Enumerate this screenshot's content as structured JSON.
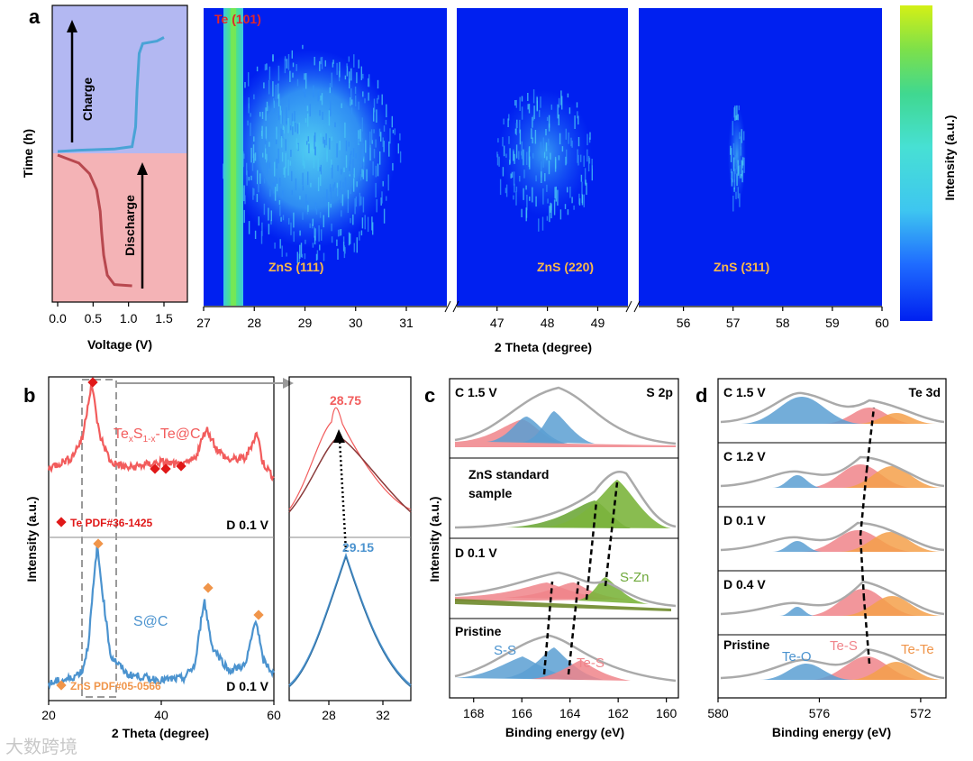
{
  "panels": {
    "a": "a",
    "b": "b",
    "c": "c",
    "d": "d"
  },
  "watermark": "大数跨境",
  "chart_data": [
    {
      "id": "a-voltage",
      "type": "line",
      "xlabel": "Voltage (V)",
      "ylabel": "Time (h)",
      "xticks": [
        "0.0",
        "0.5",
        "1.0",
        "1.5"
      ],
      "labels": {
        "charge": "Charge",
        "discharge": "Discharge"
      },
      "colors": {
        "charge_bg": "#b3b8f2",
        "discharge_bg": "#f4b3b6",
        "charge_line": "#4aa3d6",
        "discharge_line": "#b8484f"
      },
      "series": [
        {
          "name": "Discharge",
          "x": [
            0.0,
            0.3,
            0.45,
            0.55,
            0.6,
            0.62,
            0.65,
            0.7,
            0.8,
            1.05
          ],
          "y": [
            0.0,
            0.06,
            0.14,
            0.26,
            0.42,
            0.58,
            0.75,
            0.9,
            0.97,
            0.98
          ]
        },
        {
          "name": "Charge",
          "x": [
            0.0,
            0.3,
            0.8,
            1.05,
            1.1,
            1.12,
            1.15,
            1.2,
            1.4,
            1.5
          ],
          "y": [
            0.0,
            0.01,
            0.02,
            0.04,
            0.2,
            0.5,
            0.8,
            0.88,
            0.9,
            0.93
          ]
        }
      ]
    },
    {
      "id": "a-contour",
      "type": "heatmap",
      "xlabel": "2 Theta (degree)",
      "colorbar_label": "Intensity (a.u.)",
      "segments": [
        {
          "range": [
            27,
            31.8
          ],
          "ticks": [
            "27",
            "28",
            "29",
            "30",
            "31"
          ]
        },
        {
          "range": [
            46.2,
            49.6
          ],
          "ticks": [
            "47",
            "48",
            "49"
          ]
        },
        {
          "range": [
            55.1,
            60
          ],
          "ticks": [
            "56",
            "57",
            "58",
            "59",
            "60"
          ]
        }
      ],
      "annotations": [
        {
          "text": "Te (101)"
        },
        {
          "text": "ZnS (111)"
        },
        {
          "text": "ZnS (220)"
        },
        {
          "text": "ZnS (311)"
        }
      ],
      "colors": [
        "#0020f0",
        "#1f6cff",
        "#3ec6f0",
        "#47e0d4",
        "#40d890",
        "#7de04a",
        "#d4f016"
      ]
    },
    {
      "id": "b-wide",
      "type": "line",
      "xlabel": "2 Theta (degree)",
      "ylabel": "Intensity (a.u.)",
      "xlim": [
        20,
        60
      ],
      "xticks": [
        "20",
        "40",
        "60"
      ],
      "labels": {
        "top_sample": "Te",
        "sub1": "x",
        "mid": "S",
        "sub2": "1-x",
        "rest": "-Te@C",
        "top_ref": "Te PDF#36-1425",
        "top_state": "D 0.1 V",
        "bot_sample": "S@C",
        "bot_ref": "ZnS PDF#05-0566",
        "bot_state": "D 0.1 V"
      },
      "series": [
        {
          "name": "TexS1-x-Te@C",
          "color": "#f25c5c",
          "x": [
            20,
            24,
            26,
            27.6,
            29,
            31,
            34,
            38,
            40,
            42,
            44,
            46,
            48,
            50,
            52,
            55,
            57,
            58,
            60
          ],
          "y": [
            0.55,
            0.6,
            0.7,
            0.98,
            0.72,
            0.58,
            0.55,
            0.57,
            0.58,
            0.57,
            0.56,
            0.6,
            0.75,
            0.64,
            0.59,
            0.6,
            0.73,
            0.58,
            0.5
          ]
        },
        {
          "name": "S@C",
          "color": "#4b93cf",
          "x": [
            20,
            24,
            26,
            27,
            28.6,
            29.5,
            31,
            34,
            40,
            44,
            46,
            47.6,
            49,
            52,
            55,
            56.8,
            58,
            60
          ],
          "y": [
            0.15,
            0.18,
            0.22,
            0.35,
            0.88,
            0.65,
            0.3,
            0.2,
            0.17,
            0.18,
            0.25,
            0.6,
            0.35,
            0.22,
            0.25,
            0.5,
            0.28,
            0.2
          ]
        }
      ]
    },
    {
      "id": "b-zoom",
      "type": "line",
      "xticks": [
        "28",
        "32"
      ],
      "labels": {
        "top_peak": "28.75",
        "bot_peak": "29.15"
      }
    },
    {
      "id": "c",
      "type": "line",
      "xlabel": "Binding energy (eV)",
      "ylabel": "Intensity (a.u.)",
      "xlim": [
        169,
        159.5
      ],
      "xticks": [
        "168",
        "166",
        "164",
        "162",
        "160"
      ],
      "labels": {
        "region": "S 2p",
        "c15": "C 1.5 V",
        "std1": "ZnS standard",
        "std2": "sample",
        "d01": "D 0.1 V",
        "szn": "S-Zn",
        "pristine": "Pristine",
        "ss": "S-S",
        "tes": "Te-S"
      }
    },
    {
      "id": "d",
      "type": "line",
      "xlabel": "Binding energy (eV)",
      "xlim": [
        580,
        571
      ],
      "xticks": [
        "580",
        "576",
        "572"
      ],
      "labels": {
        "region": "Te 3d",
        "c15": "C 1.5 V",
        "c12": "C 1.2 V",
        "d01": "D 0.1 V",
        "d04": "D 0.4 V",
        "pristine": "Pristine",
        "teo": "Te-O",
        "tes": "Te-S",
        "tete": "Te-Te"
      }
    }
  ]
}
